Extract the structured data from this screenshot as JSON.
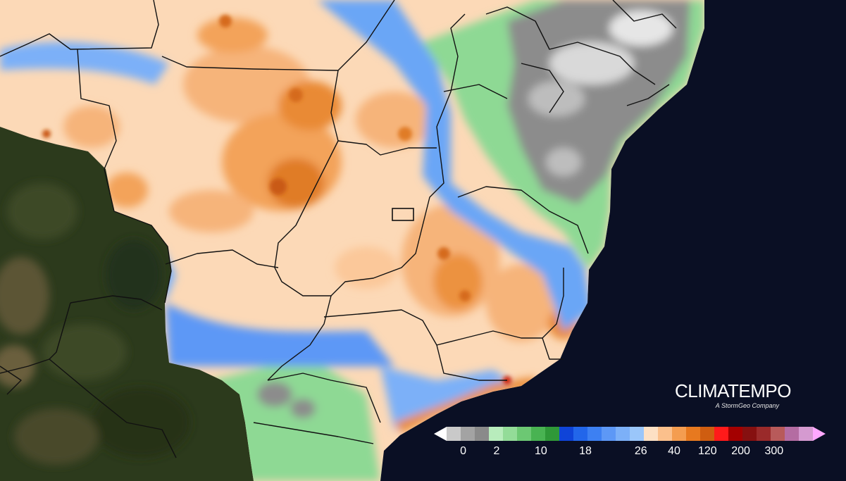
{
  "brand": {
    "name": "CLIMATEMPO",
    "tagline": "A StormGeo Company"
  },
  "legend": {
    "labels": [
      "0",
      "2",
      "10",
      "18",
      "26",
      "40",
      "120",
      "200",
      "300"
    ],
    "colors": [
      "#ffffff",
      "#c9c9c9",
      "#a3a3a3",
      "#8a8a8a",
      "#b8ecbc",
      "#93dc98",
      "#6cc873",
      "#49b352",
      "#2f9838",
      "#0f44d8",
      "#2266ea",
      "#3d80f2",
      "#5d98f6",
      "#7cb0f8",
      "#9ac6fa",
      "#fde0c4",
      "#fbc08c",
      "#f49d50",
      "#e7791f",
      "#cf5d10",
      "#ff1a1a",
      "#a40000",
      "#861010",
      "#9a2a2a",
      "#b85a5a",
      "#b46ca2",
      "#d59ad0",
      "#ffa8ff"
    ]
  },
  "palette": {
    "ocean": "#0a0f24",
    "land": "#2f3a1e",
    "dry_peach": "#fcd9b7",
    "dry_orange": "#f3a35a",
    "dry_dark": "#d56b1a",
    "wet_blue": "#5a9df3",
    "wet_green": "#8ed994",
    "heavy_gray": "#8c8c8c",
    "light_gray": "#d9d9d9",
    "border": "#111111"
  }
}
